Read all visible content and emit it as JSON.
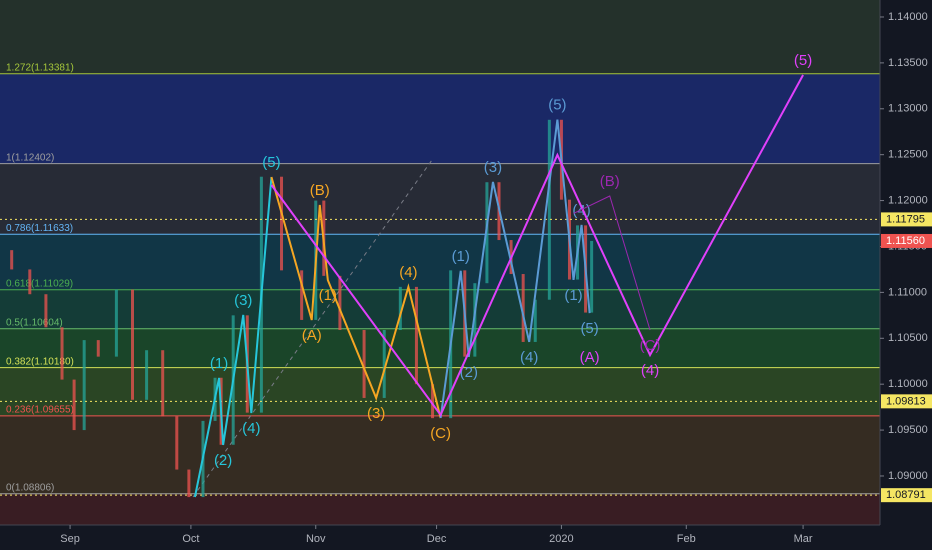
{
  "chart_data": {
    "type": "candlestick",
    "xlim": [
      -17.4,
      201.1
    ],
    "ylim": [
      1.08466,
      1.14185
    ],
    "xticks": [
      {
        "value": 0,
        "label": "Sep"
      },
      {
        "value": 30,
        "label": "Oct"
      },
      {
        "value": 61,
        "label": "Nov"
      },
      {
        "value": 91,
        "label": "Dec"
      },
      {
        "value": 122,
        "label": "2020"
      },
      {
        "value": 153,
        "label": "Feb"
      },
      {
        "value": 182,
        "label": "Mar"
      }
    ],
    "yticks": [
      {
        "value": 1.09,
        "label": "1.09000"
      },
      {
        "value": 1.095,
        "label": "1.09500"
      },
      {
        "value": 1.1,
        "label": "1.10000"
      },
      {
        "value": 1.105,
        "label": "1.10500"
      },
      {
        "value": 1.11,
        "label": "1.11000"
      },
      {
        "value": 1.115,
        "label": "1.11500"
      },
      {
        "value": 1.12,
        "label": "1.12000"
      },
      {
        "value": 1.125,
        "label": "1.12500"
      },
      {
        "value": 1.13,
        "label": "1.13000"
      },
      {
        "value": 1.135,
        "label": "1.13500"
      },
      {
        "value": 1.14,
        "label": "1.14000"
      }
    ],
    "up_color": "#26a69a",
    "down_color": "#ef5350",
    "series": [
      {
        "x": [
          -17,
          -12,
          -8,
          -4,
          0,
          2,
          5,
          9,
          14,
          17,
          21,
          25,
          28,
          31,
          35,
          37,
          38,
          43,
          45,
          50,
          55,
          60,
          62,
          64,
          70,
          76,
          80,
          84,
          88,
          92,
          97,
          99,
          102,
          105,
          108,
          111,
          114,
          117,
          121,
          123,
          125,
          127,
          129,
          130
        ],
        "values": [
          1.1146,
          1.1125,
          1.1098,
          1.1062,
          1.1005,
          1.095,
          1.1048,
          1.103,
          1.1103,
          1.0983,
          1.1037,
          1.0965,
          1.0907,
          1.0877,
          1.096,
          1.1007,
          1.0934,
          1.1075,
          1.0969,
          1.1226,
          1.1124,
          1.107,
          1.12,
          1.1118,
          1.1059,
          1.0985,
          1.1059,
          1.1106,
          1.1,
          1.0963,
          1.1124,
          1.103,
          1.111,
          1.122,
          1.1157,
          1.112,
          1.1046,
          1.1092,
          1.1288,
          1.1201,
          1.1114,
          1.1173,
          1.1078,
          1.1156
        ]
      }
    ],
    "fib_levels": [
      {
        "label": "1.272(1.13381)",
        "value": 1.13381,
        "color": "#a5c63b",
        "band": "#1c2a6e"
      },
      {
        "label": "1(1.12402)",
        "value": 1.12402,
        "color": "#9e9e9e",
        "band": "#2a2e39"
      },
      {
        "label": "0.786(1.11633)",
        "value": 1.11633,
        "color": "#64b5f6",
        "band": "#123a4a"
      },
      {
        "label": "0.618(1.11029)",
        "value": 1.11029,
        "color": "#4caf50",
        "band": "#15403a"
      },
      {
        "label": "0.5(1.10604)",
        "value": 1.10604,
        "color": "#66bb6a",
        "band": "#1c4a2a"
      },
      {
        "label": "0.382(1.10180)",
        "value": 1.1018,
        "color": "#d4e157",
        "band": "#2e4a25"
      },
      {
        "label": "0.236(1.09655)",
        "value": 1.09655,
        "color": "#ef5350",
        "band": "#3a2f22"
      },
      {
        "label": "0(1.08806)",
        "value": 1.08806,
        "color": "#9e9e9e",
        "band": "#3e1e24"
      }
    ],
    "top_band": "#27342c",
    "price_lines": [
      1.11795,
      1.09813,
      1.08791
    ],
    "price_line_color": "#f5e663",
    "last_price": {
      "value": 1.1156,
      "label": "1.11560"
    },
    "last_price_color": "#ef5350",
    "waves": [
      {
        "color": "#26c6da",
        "x": [
          31,
          37,
          38,
          43,
          45,
          50
        ],
        "values": [
          1.08771,
          1.10068,
          1.09338,
          1.10754,
          1.09686,
          1.12257
        ],
        "labels": [
          null,
          "(1)",
          "(2)",
          "(3)",
          "(4)",
          "(5)"
        ]
      },
      {
        "color": "#f5a623",
        "x": [
          50,
          60,
          62,
          64,
          76,
          84,
          92
        ],
        "values": [
          1.12257,
          1.10699,
          1.11952,
          1.11134,
          1.0985,
          1.11059,
          1.09632
        ],
        "labels": [
          null,
          "(A)",
          "(B)",
          "(1)",
          "(3)",
          "(4)",
          "(C)"
        ]
      },
      {
        "color": "#5b9bd5",
        "x": [
          92,
          97,
          99,
          105,
          114,
          121,
          125,
          127,
          129
        ],
        "values": [
          1.09632,
          1.11235,
          1.10297,
          1.12203,
          1.10461,
          1.12882,
          1.11136,
          1.11735,
          1.10774
        ],
        "labels": [
          null,
          "(1)",
          "(2)",
          "(3)",
          "(4)",
          "(5)",
          "(1)",
          "(4)",
          "(5)"
        ]
      },
      {
        "color": "#e040fb",
        "x": [
          50,
          92,
          121,
          144,
          182
        ],
        "values": [
          1.1217,
          1.09665,
          1.12497,
          1.10318,
          1.13368
        ],
        "labels": [
          null,
          null,
          null,
          "(4)",
          "(5)"
        ]
      },
      {
        "color": "#9c27b0",
        "x": [
          125,
          134,
          144
        ],
        "values": [
          1.1186,
          1.1205,
          1.1059
        ],
        "labels": [
          null,
          "(B)",
          "(C)"
        ]
      }
    ],
    "annotations": [
      {
        "text": "(A)",
        "x": 129,
        "value": 1.10285,
        "color": "#e040fb"
      }
    ]
  }
}
